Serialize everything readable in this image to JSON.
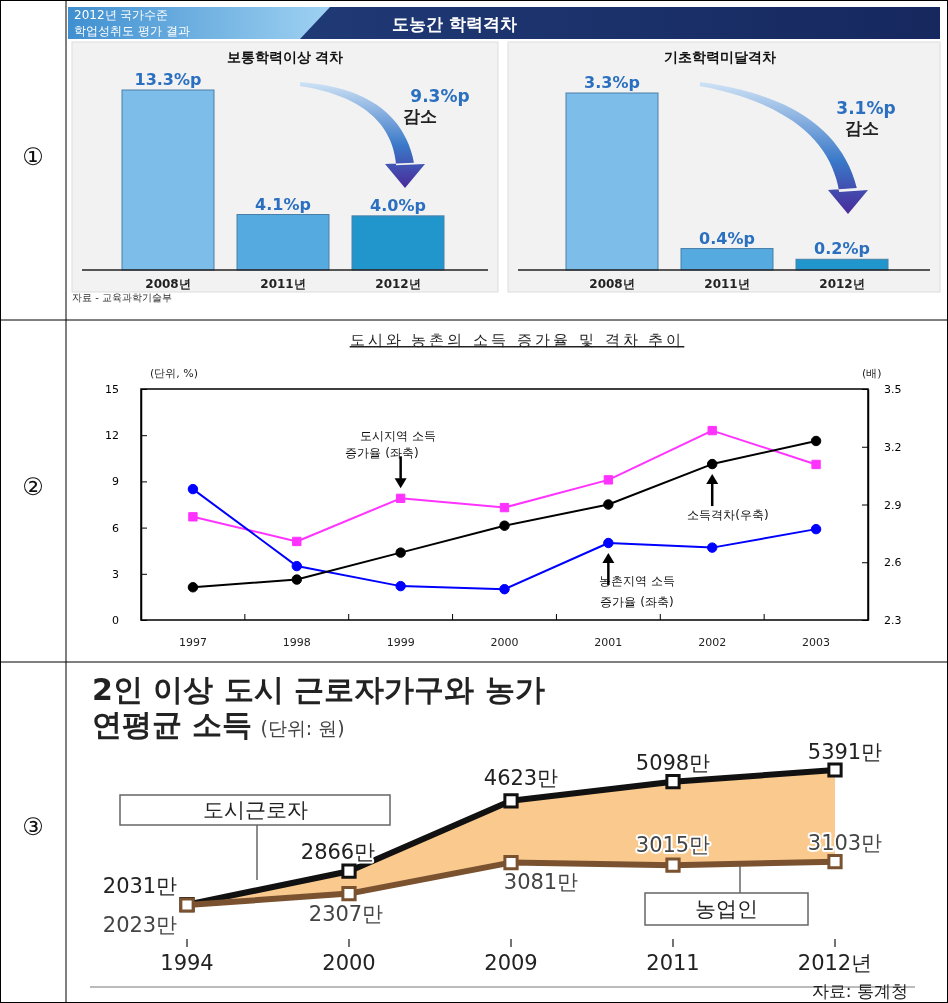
{
  "chart_data": [
    {
      "type": "bar",
      "title": "보통학력이상 격차",
      "categories": [
        "2008년",
        "2011년",
        "2012년"
      ],
      "values": [
        13.3,
        4.1,
        4.0
      ],
      "colors": [
        "#7dbde9",
        "#55aae0",
        "#2196cc"
      ],
      "value_labels": [
        "13.3%p",
        "4.1%p",
        "4.0%p"
      ],
      "annotations": [
        "2012년 국가수준",
        "학업성취도 평가 결과",
        "도농간 학력격차",
        "9.3%p",
        "감소",
        "자료 - 교육과학기술부",
        "①"
      ]
    },
    {
      "type": "bar",
      "title": "기초학력미달격차",
      "categories": [
        "2008년",
        "2011년",
        "2012년"
      ],
      "values": [
        3.3,
        0.4,
        0.2
      ],
      "colors": [
        "#7dbde9",
        "#55aae0",
        "#2196cc"
      ],
      "value_labels": [
        "3.3%p",
        "0.4%p",
        "0.2%p"
      ],
      "annotations": [
        "3.1%p",
        "감소"
      ]
    },
    {
      "type": "line",
      "title": "도시와 농촌의 소득 증가율 및 격차 추이",
      "ylabel": "(단위, %)",
      "y2label": "(배)",
      "categories": [
        "1997",
        "1998",
        "1999",
        "2000",
        "2001",
        "2002",
        "2003"
      ],
      "ylim": [
        0,
        15
      ],
      "yticks": [
        0,
        3,
        6,
        9,
        12,
        15
      ],
      "y2lim": [
        2.3,
        3.5
      ],
      "y2ticks": [
        2.3,
        2.6,
        2.9,
        3.2,
        3.5
      ],
      "series": [
        {
          "color": "#ff33ff",
          "marker": "square",
          "values": [
            6.7,
            5.1,
            7.9,
            7.3,
            9.1,
            12.3,
            10.1
          ]
        },
        {
          "color": "#0000ff",
          "marker": "circle",
          "values": [
            8.5,
            3.5,
            2.2,
            2.0,
            5.0,
            4.7,
            5.9
          ]
        },
        {
          "color": "#000000",
          "marker": "circle",
          "axis": "y2",
          "values": [
            2.47,
            2.51,
            2.65,
            2.79,
            2.9,
            3.11,
            3.23
          ]
        }
      ],
      "annotations": [
        "도시지역 소득",
        "증가율 (좌축)",
        "소득격차(우축)",
        "농촌지역 소득",
        "증가율 (좌축)",
        "②"
      ]
    },
    {
      "type": "line",
      "title": "2인 이상 도시 근로자가구와 농가 연평균 소득",
      "subtitle": "(단위: 원)",
      "categories": [
        "1994",
        "2000",
        "2009",
        "2011",
        "2012년"
      ],
      "marker": "square",
      "series": [
        {
          "name": "도시근로자",
          "color": "#111111",
          "values": [
            2031,
            2866,
            4623,
            5098,
            5391
          ],
          "value_labels": [
            "2031만",
            "2866만",
            "4623만",
            "5098만",
            "5391만"
          ]
        },
        {
          "name": "농업인",
          "color": "#7a5230",
          "values": [
            2023,
            2307,
            3081,
            3015,
            3103
          ],
          "value_labels": [
            "2023만",
            "2307만",
            "3081만",
            "3015만",
            "3103만"
          ]
        }
      ],
      "annotations": [
        "자료: 통계청",
        "③"
      ]
    }
  ]
}
